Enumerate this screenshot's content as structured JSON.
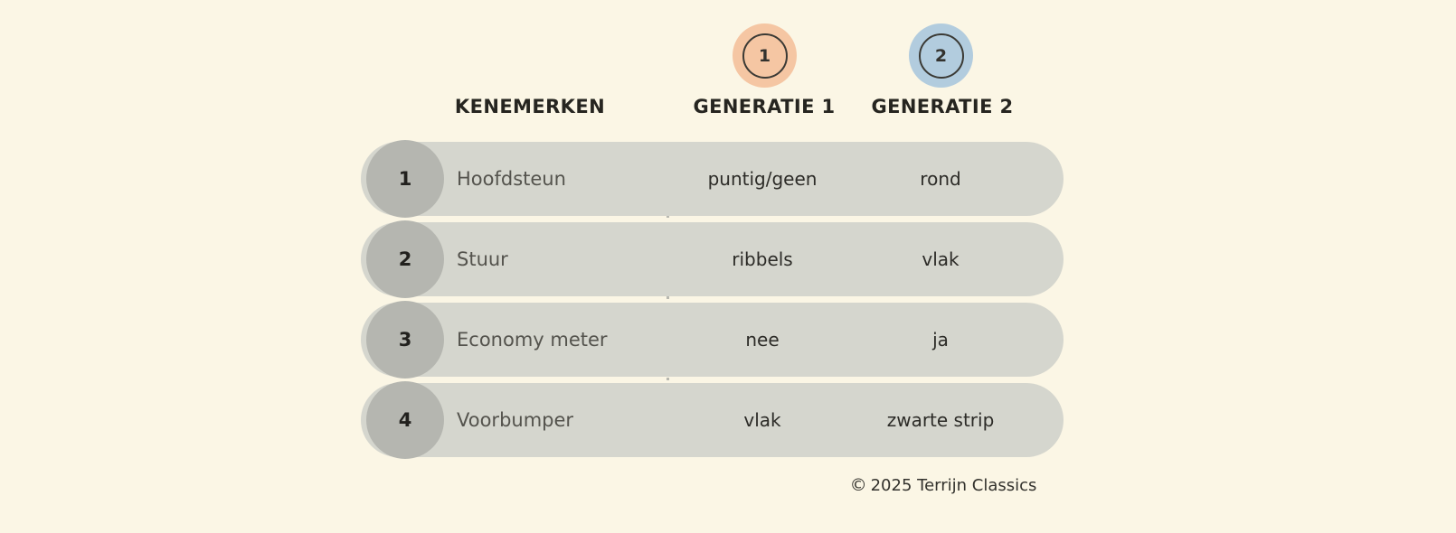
{
  "badges": [
    {
      "number": "1",
      "color": "#f5c6a3"
    },
    {
      "number": "2",
      "#comment": "",
      "color": "#b2ccde"
    }
  ],
  "headers": {
    "features": "KENEMERKEN",
    "gen1": "GENERATIE 1",
    "gen2": "GENERATIE 2"
  },
  "rows": [
    {
      "num": "1",
      "label": "Hoofdsteun",
      "gen1": "puntig/geen",
      "gen2": "rond"
    },
    {
      "num": "2",
      "label": "Stuur",
      "gen1": "ribbels",
      "gen2": "vlak"
    },
    {
      "num": "3",
      "label": "Economy meter",
      "gen1": "nee",
      "gen2": "ja"
    },
    {
      "num": "4",
      "label": "Voorbumper",
      "gen1": "vlak",
      "gen2": "zwarte strip"
    }
  ],
  "footer": {
    "copyright_symbol": "©",
    "text": "2025 Terrijn Classics"
  },
  "colors": {
    "background": "#fbf6e5",
    "pill": "#d5d6ce",
    "number_circle": "#b5b6b0",
    "badge_gen1": "#f5c6a3",
    "badge_gen2": "#b2ccde",
    "text_dark": "#262520",
    "text_label": "#54534d",
    "divider_dots": "#b8b8b0"
  },
  "chart_data": {
    "type": "table",
    "title": "",
    "columns": [
      "KENEMERKEN",
      "GENERATIE 1",
      "GENERATIE 2"
    ],
    "rows": [
      [
        "Hoofdsteun",
        "puntig/geen",
        "rond"
      ],
      [
        "Stuur",
        "ribbels",
        "vlak"
      ],
      [
        "Economy meter",
        "nee",
        "ja"
      ],
      [
        "Voorbumper",
        "vlak",
        "zwarte strip"
      ]
    ],
    "row_numbers": [
      "1",
      "2",
      "3",
      "4"
    ],
    "notes": "Comparison infographic of generation 1 vs generation 2 features; dotted divider between feature names and values; footer credit © 2025 Terrijn Classics"
  }
}
